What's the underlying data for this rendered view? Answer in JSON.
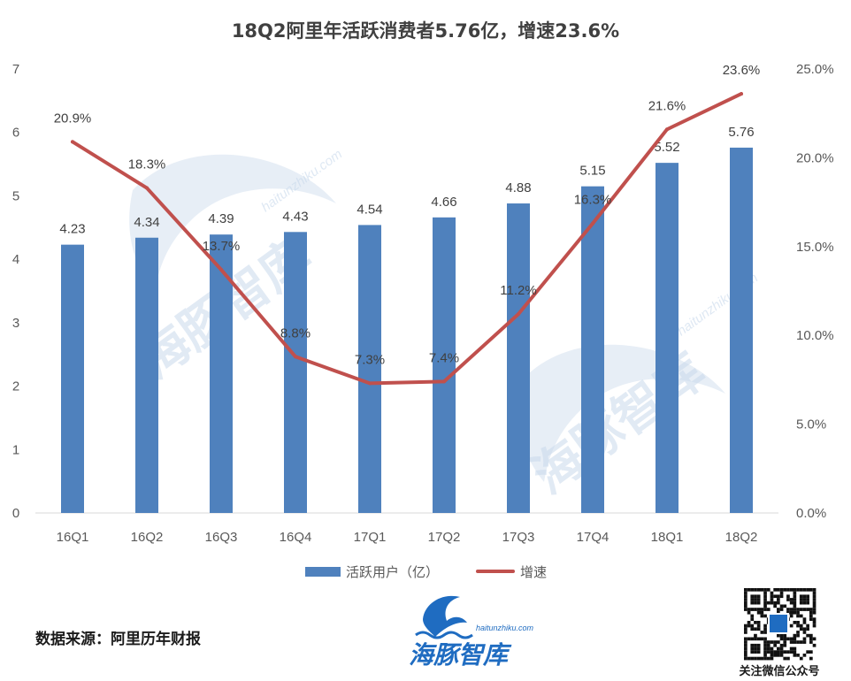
{
  "chart_data": {
    "type": "bar+line",
    "title": "18Q2阿里年活跃消费者5.76亿，增速23.6%",
    "categories": [
      "16Q1",
      "16Q2",
      "16Q3",
      "16Q4",
      "17Q1",
      "17Q2",
      "17Q3",
      "17Q4",
      "18Q1",
      "18Q2"
    ],
    "series": [
      {
        "name": "活跃用户（亿）",
        "type": "bar",
        "axis": "left",
        "color": "#4f81bd",
        "values": [
          4.23,
          4.34,
          4.39,
          4.43,
          4.54,
          4.66,
          4.88,
          5.15,
          5.52,
          5.76
        ],
        "labels": [
          "4.23",
          "4.34",
          "4.39",
          "4.43",
          "4.54",
          "4.66",
          "4.88",
          "5.15",
          "5.52",
          "5.76"
        ]
      },
      {
        "name": "增速",
        "type": "line",
        "axis": "right",
        "color": "#c0504d",
        "values": [
          20.9,
          18.3,
          13.7,
          8.8,
          7.3,
          7.4,
          11.2,
          16.3,
          21.6,
          23.6
        ],
        "labels": [
          "20.9%",
          "18.3%",
          "13.7%",
          "8.8%",
          "7.3%",
          "7.4%",
          "11.2%",
          "16.3%",
          "21.6%",
          "23.6%"
        ]
      }
    ],
    "y_left": {
      "ylim": [
        0,
        7
      ],
      "ticks": [
        "0",
        "1",
        "2",
        "3",
        "4",
        "5",
        "6",
        "7"
      ]
    },
    "y_right": {
      "ylim": [
        0,
        25
      ],
      "ticks": [
        "0.0%",
        "5.0%",
        "10.0%",
        "15.0%",
        "20.0%",
        "25.0%"
      ]
    },
    "grid": false,
    "legend_position": "bottom"
  },
  "footer": {
    "source": "数据来源：阿里历年财报",
    "qr_caption": "关注微信公众号"
  },
  "branding": {
    "watermark_text": "海豚智库",
    "watermark_url": "haitunzhiku.com",
    "logo_text": "海豚智库",
    "logo_url": "haitunzhiku.com",
    "logo_color": "#1f6cc1"
  }
}
